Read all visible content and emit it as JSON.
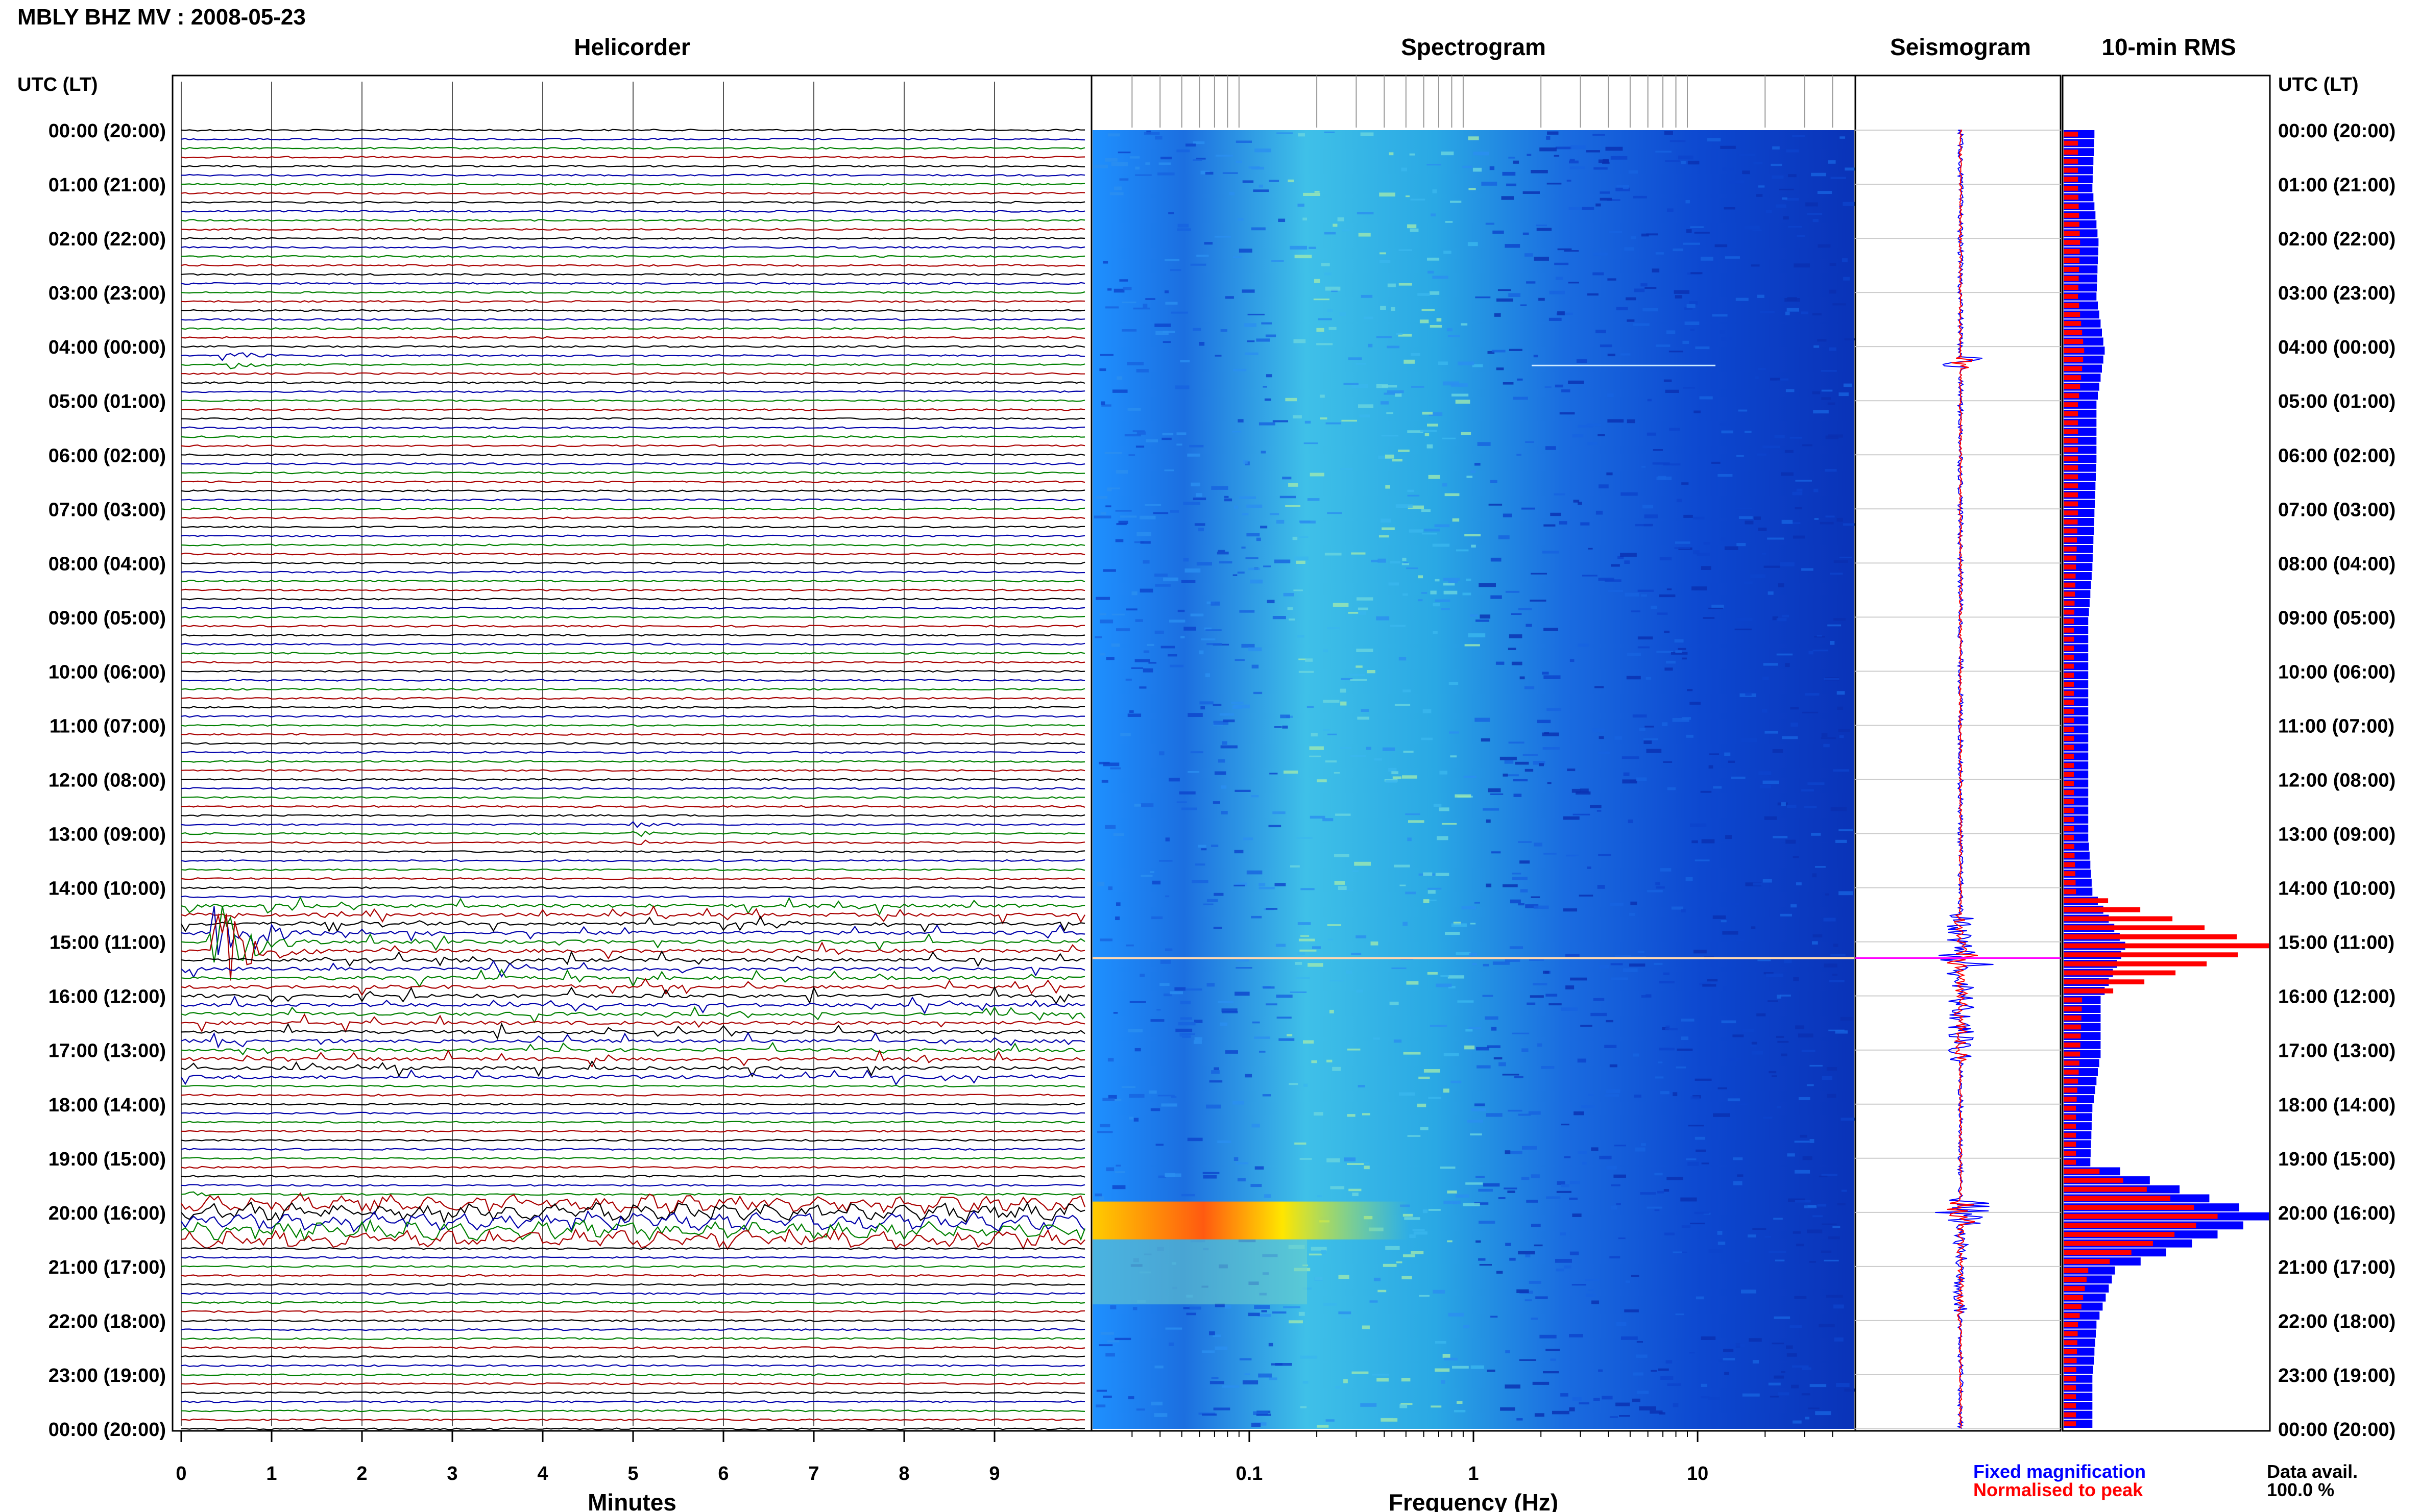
{
  "page_title": "MBLY BHZ MV : 2008-05-23",
  "panels": {
    "helicorder": "Helicorder",
    "spectrogram": "Spectrogram",
    "seismogram": "Seismogram",
    "rms": "10-min RMS"
  },
  "axis_header_left": "UTC (LT)",
  "axis_header_right": "UTC (LT)",
  "time_labels": [
    "00:00 (20:00)",
    "01:00 (21:00)",
    "02:00 (22:00)",
    "03:00 (23:00)",
    "04:00 (00:00)",
    "05:00 (01:00)",
    "06:00 (02:00)",
    "07:00 (03:00)",
    "08:00 (04:00)",
    "09:00 (05:00)",
    "10:00 (06:00)",
    "11:00 (07:00)",
    "12:00 (08:00)",
    "13:00 (09:00)",
    "14:00 (10:00)",
    "15:00 (11:00)",
    "16:00 (12:00)",
    "17:00 (13:00)",
    "18:00 (14:00)",
    "19:00 (15:00)",
    "20:00 (16:00)",
    "21:00 (17:00)",
    "22:00 (18:00)",
    "23:00 (19:00)",
    "00:00 (20:00)"
  ],
  "helicorder_xlabel": "Minutes",
  "helicorder_ticks": [
    "0",
    "1",
    "2",
    "3",
    "4",
    "5",
    "6",
    "7",
    "8",
    "9"
  ],
  "spectrogram_xlabel": "Frequency (Hz)",
  "spectrogram_ticks": [
    "0.1",
    "1",
    "10"
  ],
  "legend": {
    "fixed": "Fixed magnification",
    "normalised": "Normalised to peak",
    "fixed_color": "#0000ff",
    "normalised_color": "#ff0000"
  },
  "data_avail_label": "Data avail.",
  "data_avail_value": "100.0 %",
  "trace_colors": [
    "#000000",
    "#0000aa",
    "#008000",
    "#aa0000"
  ],
  "chart_data": {
    "type": "helicorder+spectrogram+seismogram+rms",
    "station": "MBLY BHZ MV",
    "date": "2008-05-23",
    "helicorder": {
      "x_unit": "minutes",
      "xlim": [
        0,
        10
      ],
      "lines_per_hour": 6,
      "hours": 24,
      "events": [
        {
          "utc_hour": 4.25,
          "minute": 0.5,
          "amplitude": "moderate"
        },
        {
          "utc_hour": 13.0,
          "minute": 5.0,
          "amplitude": "small"
        },
        {
          "utc_hour": 15.0,
          "minute": 0.4,
          "amplitude": "large"
        },
        {
          "utc_hour": 19.8,
          "minute": 0.0,
          "amplitude": "long-period"
        }
      ]
    },
    "spectrogram": {
      "x_scale": "log",
      "xlim_hz": [
        0.02,
        50
      ],
      "x_ticks_hz": [
        0.1,
        1,
        10
      ],
      "high_energy_band": {
        "utc_hour": [
          19.8,
          20.5
        ],
        "freq_hz": [
          0.02,
          0.6
        ]
      }
    },
    "rms_10min": {
      "hours": [
        0,
        1,
        2,
        3,
        4,
        5,
        6,
        7,
        8,
        9,
        10,
        11,
        12,
        13,
        14,
        15,
        16,
        17,
        18,
        19,
        20,
        21,
        22,
        23
      ],
      "fixed": [
        0.15,
        0.14,
        0.17,
        0.16,
        0.2,
        0.16,
        0.16,
        0.15,
        0.14,
        0.12,
        0.12,
        0.12,
        0.12,
        0.12,
        0.14,
        0.3,
        0.18,
        0.18,
        0.14,
        0.13,
        1.0,
        0.25,
        0.16,
        0.14
      ],
      "normalised": [
        0.07,
        0.07,
        0.08,
        0.07,
        0.1,
        0.07,
        0.07,
        0.07,
        0.06,
        0.05,
        0.05,
        0.05,
        0.05,
        0.05,
        0.06,
        1.0,
        0.09,
        0.08,
        0.06,
        0.06,
        0.75,
        0.12,
        0.07,
        0.06
      ]
    }
  }
}
